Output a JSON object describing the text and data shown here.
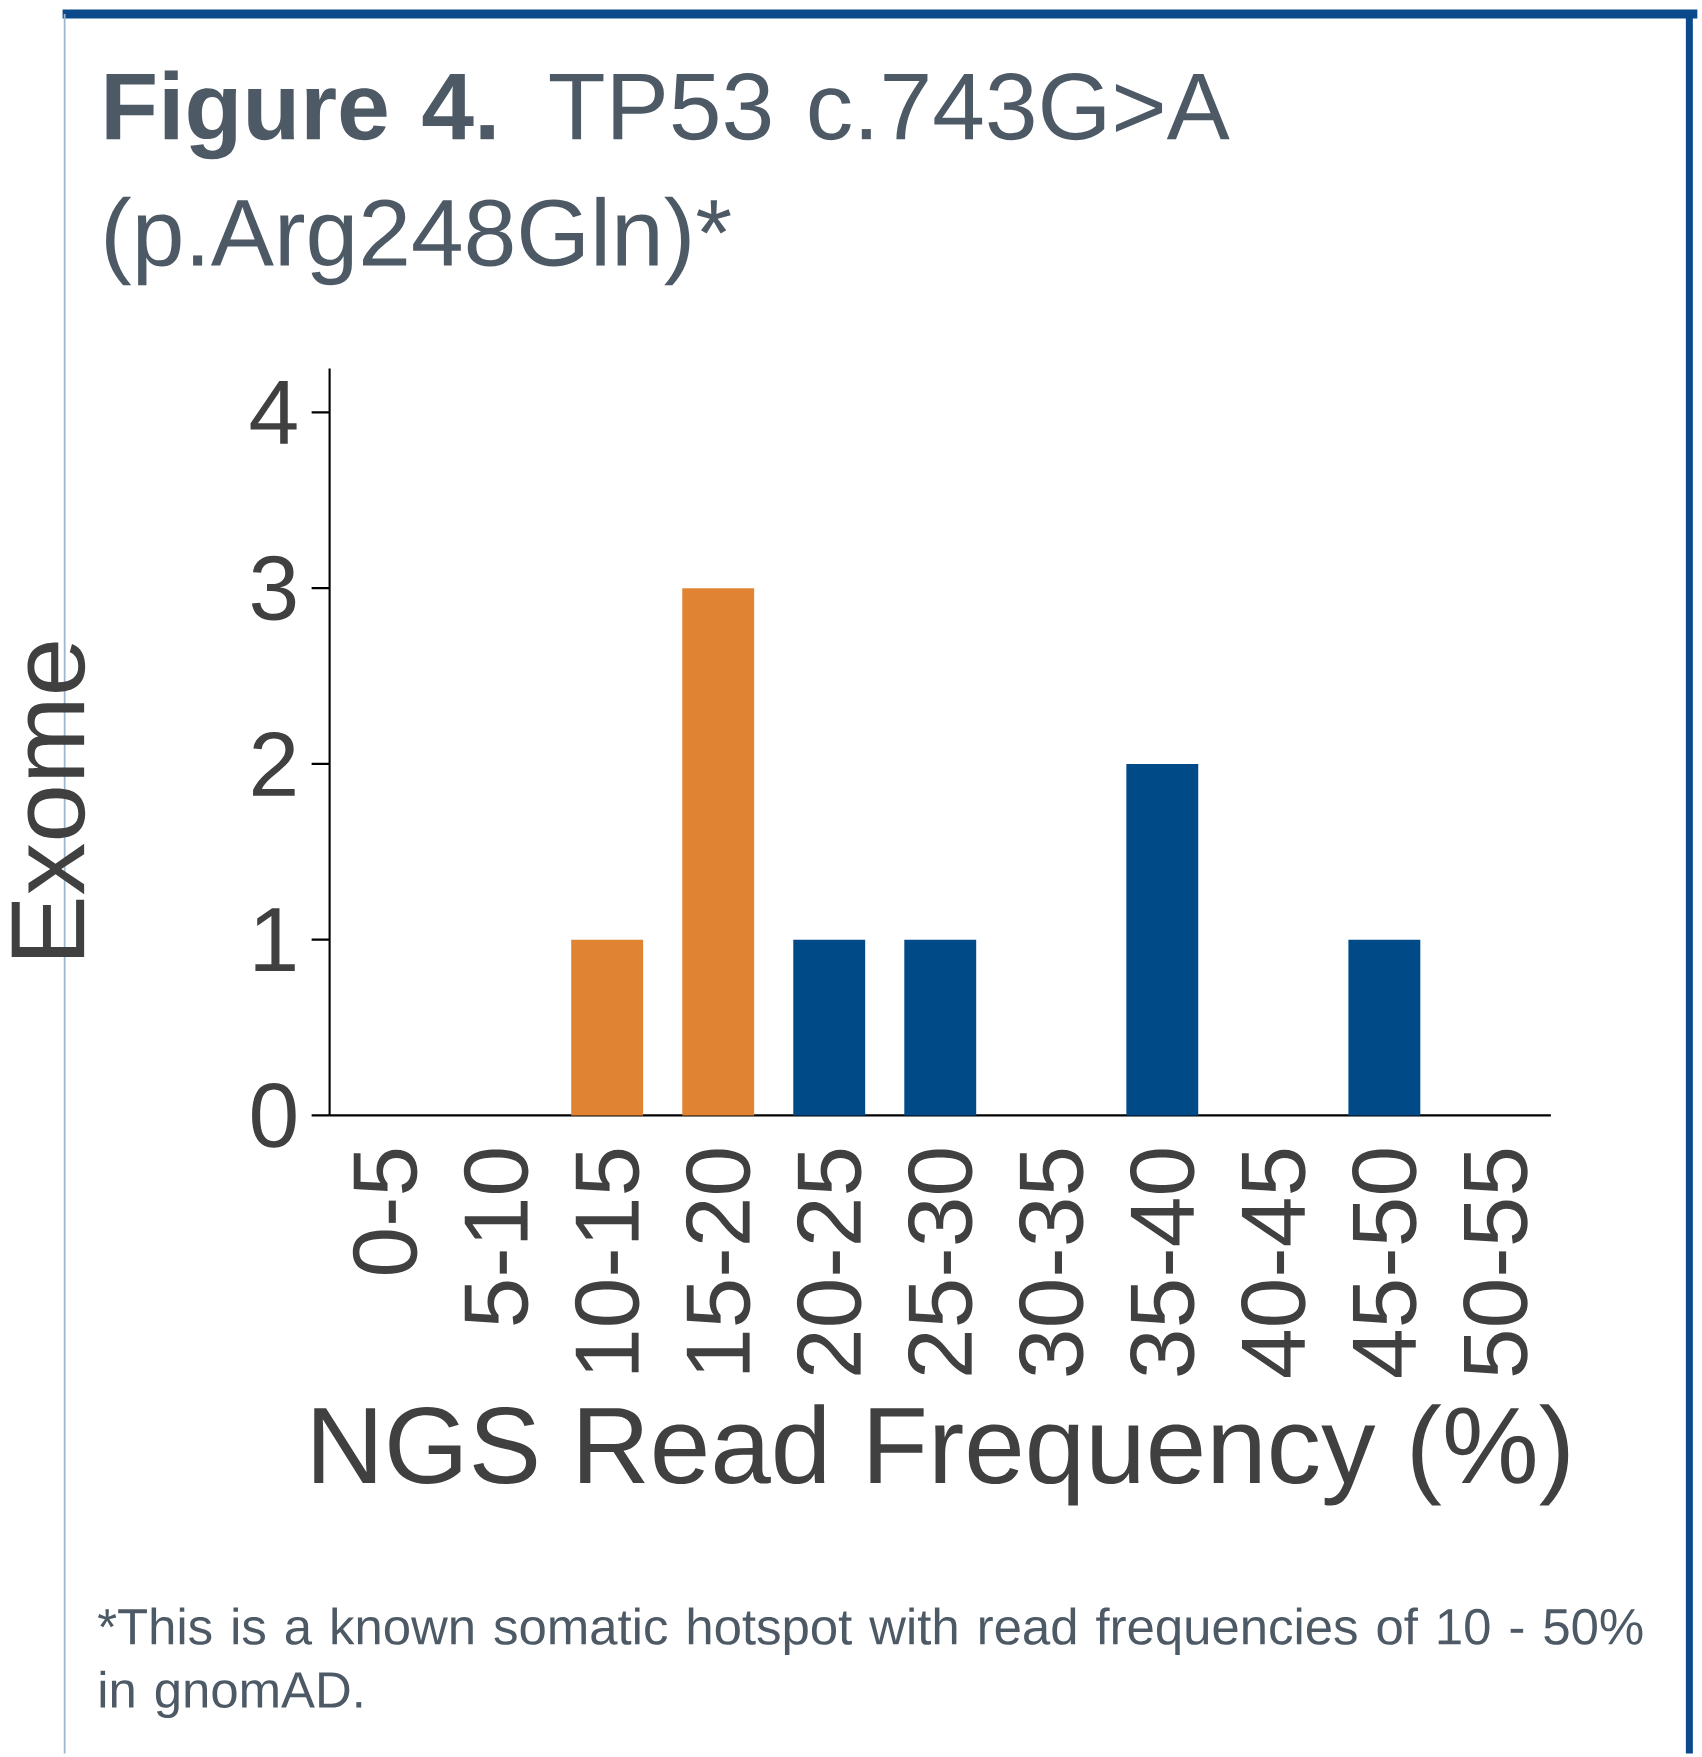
{
  "chart_data": {
    "type": "bar",
    "title": "**Figure 4.** TP53 c.743G>A (p.Arg248Gln)*",
    "xlabel": "NGS Read Frequency (%)",
    "ylabel": "Exome",
    "categories": [
      "0-5",
      "5-10",
      "10-15",
      "15-20",
      "20-25",
      "25-30",
      "30-35",
      "35-40",
      "40-45",
      "45-50",
      "50-55"
    ],
    "values": [
      0,
      0,
      1,
      3,
      1,
      1,
      0,
      2,
      0,
      1,
      0
    ],
    "colors": [
      "#004a87",
      "#004a87",
      "#e08433",
      "#e08433",
      "#004a87",
      "#004a87",
      "#004a87",
      "#004a87",
      "#004a87",
      "#004a87",
      "#004a87"
    ],
    "ylim": [
      0,
      4.25
    ],
    "yticks": [
      0,
      1,
      2,
      3,
      4
    ],
    "annotations": [
      "*This is a known somatic hotspot with read frequencies of 10 - 50% in gnomAD."
    ]
  }
}
